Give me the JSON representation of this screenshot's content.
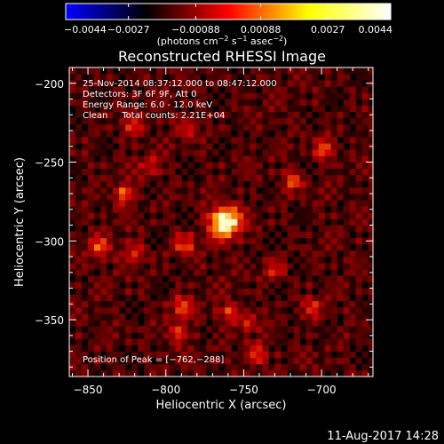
{
  "chart_data": [
    {
      "type": "colorbar",
      "scale": "colormap",
      "colors": [
        "#0000ff",
        "#000000",
        "#ff0000",
        "#ffff00",
        "#ffffff"
      ],
      "range": [
        -0.0044,
        0.0044
      ],
      "tick_labels": [
        "−0.0044",
        "−0.0027",
        "−0.00088",
        "0.00088",
        "0.0027",
        "0.0044"
      ],
      "tick_values": [
        -0.0044,
        -0.0027,
        -0.00088,
        0.00088,
        0.0027,
        0.0044
      ],
      "units_parts": {
        "pre": "(photons cm",
        "exp1": "−2",
        "mid1": " s",
        "exp2": "−1",
        "mid2": " asec",
        "exp3": "−2",
        "post": ")"
      }
    },
    {
      "type": "heatmap",
      "title": "Reconstructed RHESSI Image",
      "xlabel": "Heliocentric X (arcsec)",
      "ylabel": "Heliocentric Y (arcsec)",
      "xlim": [
        -862,
        -667
      ],
      "ylim": [
        -386,
        -190
      ],
      "xticks": [
        -850,
        -800,
        -750,
        -700
      ],
      "xtick_labels": [
        "−850",
        "−800",
        "−750",
        "−700"
      ],
      "yticks": [
        -200,
        -250,
        -300,
        -350
      ],
      "ytick_labels": [
        "−200",
        "−250",
        "−300",
        "−350"
      ],
      "grid": false,
      "peak": {
        "x": -762,
        "y": -288
      },
      "annotations": [
        "25-Nov-2014 08:37:12.000 to 08:47:12.000",
        "Detectors: 3F 6F 9F, Att 0",
        "Energy Range: 6.0 - 12.0 keV",
        "Clean     Total counts: 2.21E+04"
      ],
      "peak_label": "Position of Peak = [−762,−288]",
      "hotspots": [
        {
          "x": -762,
          "y": -288,
          "value": 1.0
        },
        {
          "x": -842,
          "y": -304,
          "value": 0.42
        },
        {
          "x": -827,
          "y": -270,
          "value": 0.45
        },
        {
          "x": -820,
          "y": -308,
          "value": 0.38
        },
        {
          "x": -788,
          "y": -302,
          "value": 0.4
        },
        {
          "x": -790,
          "y": -342,
          "value": 0.4
        },
        {
          "x": -793,
          "y": -358,
          "value": 0.38
        },
        {
          "x": -718,
          "y": -262,
          "value": 0.38
        },
        {
          "x": -698,
          "y": -242,
          "value": 0.4
        },
        {
          "x": -760,
          "y": -345,
          "value": 0.32
        },
        {
          "x": -730,
          "y": -318,
          "value": 0.3
        },
        {
          "x": -743,
          "y": -372,
          "value": 0.42
        },
        {
          "x": -746,
          "y": -350,
          "value": 0.3
        },
        {
          "x": -822,
          "y": -228,
          "value": 0.3
        },
        {
          "x": -705,
          "y": -342,
          "value": 0.28
        },
        {
          "x": -785,
          "y": -228,
          "value": 0.3
        },
        {
          "x": -810,
          "y": -252,
          "value": 0.28
        }
      ]
    }
  ],
  "footer": {
    "timestamp": "11-Aug-2017 14:28"
  }
}
